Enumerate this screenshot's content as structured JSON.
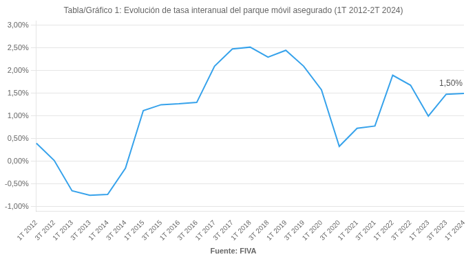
{
  "chart_data": {
    "type": "line",
    "title": "Tabla/Gráfico 1: Evolución de tasa interanual del parque móvil asegurado (1T 2012-2T 2024)",
    "source": "Fuente: FIVA",
    "categories": [
      "1T 2012",
      "3T 2012",
      "1T 2013",
      "3T 2013",
      "1T 2014",
      "3T 2014",
      "1T 2015",
      "3T 2015",
      "1T 2016",
      "3T 2016",
      "1T 2017",
      "3T 2017",
      "1T 2018",
      "3T 2018",
      "1T 2019",
      "3T 2019",
      "1T 2020",
      "3T 2020",
      "1T 2021",
      "3T 2021",
      "1T 2022",
      "3T 2022",
      "1T 2023",
      "3T 2023",
      "1T 2024"
    ],
    "values": [
      0.004,
      0.0002,
      -0.0065,
      -0.0075,
      -0.0073,
      -0.0015,
      0.0112,
      0.0125,
      0.0127,
      0.013,
      0.021,
      0.0248,
      0.0252,
      0.023,
      0.0245,
      0.021,
      0.0158,
      0.0033,
      0.0073,
      0.0078,
      0.019,
      0.0168,
      0.01,
      0.0148,
      0.015
    ],
    "ylim": [
      -0.011,
      0.031
    ],
    "yticks": [
      {
        "value": -0.01,
        "label": "-1,00%"
      },
      {
        "value": -0.005,
        "label": "-0,50%"
      },
      {
        "value": 0.0,
        "label": "0,00%"
      },
      {
        "value": 0.005,
        "label": "0,50%"
      },
      {
        "value": 0.01,
        "label": "1,00%"
      },
      {
        "value": 0.015,
        "label": "1,50%"
      },
      {
        "value": 0.02,
        "label": "2,00%"
      },
      {
        "value": 0.025,
        "label": "2,50%"
      },
      {
        "value": 0.03,
        "label": "3,00%"
      }
    ],
    "annotations": [
      {
        "text": "1,50%",
        "x": "1T 2024",
        "y": 0.015
      }
    ],
    "grid": "y",
    "marker": "none"
  }
}
